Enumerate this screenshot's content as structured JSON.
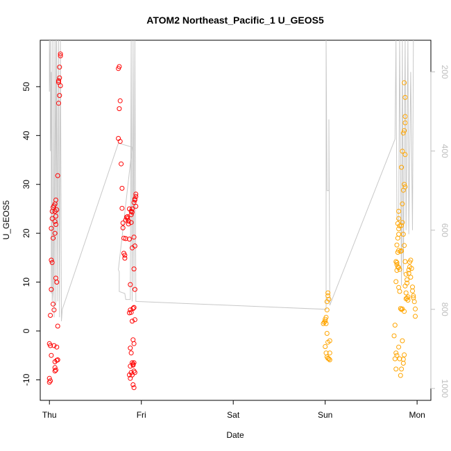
{
  "chart_data": {
    "type": "scatter",
    "title": "ATOM2 Northeast_Pacific_1 U_GEOS5",
    "xlabel": "Date",
    "ylabel": "U_GEOS5",
    "x_ticks": [
      "Thu",
      "Fri",
      "Sat",
      "Sun",
      "Mon"
    ],
    "x_domain_days": [
      -0.1,
      4.15
    ],
    "ylim": [
      -14.2,
      59.5
    ],
    "y_ticks": [
      -10,
      0,
      10,
      20,
      30,
      40,
      50
    ],
    "y2_ticks": [
      200,
      400,
      600,
      800,
      1000
    ],
    "y2lim": [
      1030,
      120
    ],
    "y2_label": "",
    "grid": false,
    "legend": "none",
    "colors": {
      "series1": "#ff0000",
      "series2": "#ffa500",
      "pressure": "#c8c8c8",
      "axis": "#000000",
      "right_axis": "#bebebe"
    },
    "series": [
      {
        "color": "#ff0000",
        "points": [
          [
            0.0,
            -2.6
          ],
          [
            0.01,
            -3.0
          ],
          [
            0.02,
            -5.0
          ],
          [
            0.0,
            -9.7
          ],
          [
            0.01,
            -10.2
          ],
          [
            0.0,
            -10.5
          ],
          [
            0.01,
            3.2
          ],
          [
            0.02,
            8.5
          ],
          [
            0.02,
            14.5
          ],
          [
            0.03,
            14.0
          ],
          [
            0.02,
            21.0
          ],
          [
            0.03,
            23.0
          ],
          [
            0.03,
            24.5
          ],
          [
            0.04,
            25.3
          ],
          [
            0.05,
            25.6
          ],
          [
            0.04,
            19.0
          ],
          [
            0.04,
            5.5
          ],
          [
            0.05,
            4.3
          ],
          [
            0.05,
            -3.0
          ],
          [
            0.06,
            -6.3
          ],
          [
            0.06,
            -7.5
          ],
          [
            0.07,
            -8.0
          ],
          [
            0.06,
            -8.2
          ],
          [
            0.08,
            -3.3
          ],
          [
            0.08,
            -6.0
          ],
          [
            0.09,
            -5.9
          ],
          [
            0.07,
            10.8
          ],
          [
            0.08,
            10.0
          ],
          [
            0.06,
            20.0
          ],
          [
            0.07,
            21.8
          ],
          [
            0.06,
            22.4
          ],
          [
            0.07,
            23.5
          ],
          [
            0.06,
            24.5
          ],
          [
            0.06,
            26.0
          ],
          [
            0.07,
            26.8
          ],
          [
            0.08,
            24.8
          ],
          [
            0.09,
            31.8
          ],
          [
            0.09,
            1.0
          ],
          [
            0.1,
            46.6
          ],
          [
            0.11,
            48.2
          ],
          [
            0.12,
            50.2
          ],
          [
            0.1,
            50.9
          ],
          [
            0.1,
            51.2
          ],
          [
            0.11,
            51.8
          ],
          [
            0.11,
            54.0
          ],
          [
            0.12,
            56.3
          ],
          [
            0.12,
            56.7
          ],
          [
            0.75,
            53.7
          ],
          [
            0.76,
            54.1
          ],
          [
            0.76,
            45.5
          ],
          [
            0.77,
            47.1
          ],
          [
            0.75,
            39.4
          ],
          [
            0.77,
            38.8
          ],
          [
            0.78,
            34.2
          ],
          [
            0.79,
            29.2
          ],
          [
            0.79,
            25.1
          ],
          [
            0.8,
            22.1
          ],
          [
            0.8,
            21.1
          ],
          [
            0.81,
            19.0
          ],
          [
            0.81,
            15.9
          ],
          [
            0.82,
            14.9
          ],
          [
            0.82,
            15.5
          ],
          [
            0.83,
            18.9
          ],
          [
            0.83,
            22.7
          ],
          [
            0.84,
            23.3
          ],
          [
            0.85,
            23.0
          ],
          [
            0.85,
            23.4
          ],
          [
            0.86,
            22.5
          ],
          [
            0.86,
            21.9
          ],
          [
            0.87,
            25.0
          ],
          [
            0.87,
            18.8
          ],
          [
            0.88,
            9.5
          ],
          [
            0.89,
            22.2
          ],
          [
            0.89,
            23.8
          ],
          [
            0.89,
            24.5
          ],
          [
            0.9,
            25.0
          ],
          [
            0.9,
            24.3
          ],
          [
            0.9,
            17.0
          ],
          [
            0.92,
            19.2
          ],
          [
            0.93,
            17.4
          ],
          [
            0.92,
            12.7
          ],
          [
            0.93,
            8.5
          ],
          [
            0.92,
            26.3
          ],
          [
            0.93,
            27.0
          ],
          [
            0.94,
            27.5
          ],
          [
            0.94,
            28.0
          ],
          [
            0.93,
            26.8
          ],
          [
            0.94,
            25.5
          ],
          [
            0.88,
            -3.5
          ],
          [
            0.88,
            -7.2
          ],
          [
            0.87,
            -9.0
          ],
          [
            0.88,
            -9.7
          ],
          [
            0.89,
            -8.5
          ],
          [
            0.9,
            -6.5
          ],
          [
            0.91,
            -7.0
          ],
          [
            0.91,
            -6.8
          ],
          [
            0.92,
            -6.5
          ],
          [
            0.9,
            -9.0
          ],
          [
            0.92,
            -8.2
          ],
          [
            0.93,
            -8.5
          ],
          [
            0.91,
            -11.0
          ],
          [
            0.92,
            -11.6
          ],
          [
            0.89,
            -4.5
          ],
          [
            0.91,
            -1.8
          ],
          [
            0.92,
            -2.6
          ],
          [
            0.87,
            3.7
          ],
          [
            0.88,
            4.3
          ],
          [
            0.89,
            3.8
          ],
          [
            0.91,
            4.6
          ],
          [
            0.92,
            4.8
          ],
          [
            0.93,
            2.3
          ],
          [
            0.92,
            4.8
          ],
          [
            0.9,
            2.0
          ]
        ]
      },
      {
        "color": "#ffa500",
        "points": [
          [
            2.98,
            1.5
          ],
          [
            2.99,
            1.8
          ],
          [
            3.0,
            2.0
          ],
          [
            3.0,
            2.4
          ],
          [
            3.01,
            1.5
          ],
          [
            3.01,
            2.8
          ],
          [
            3.02,
            4.3
          ],
          [
            3.02,
            6.0
          ],
          [
            3.03,
            7.2
          ],
          [
            3.03,
            7.8
          ],
          [
            3.04,
            6.5
          ],
          [
            3.02,
            -0.5
          ],
          [
            3.03,
            -2.3
          ],
          [
            3.05,
            -2.0
          ],
          [
            3.0,
            -3.2
          ],
          [
            3.01,
            -4.5
          ],
          [
            3.02,
            -5.3
          ],
          [
            3.03,
            -5.6
          ],
          [
            3.04,
            -5.7
          ],
          [
            3.05,
            -5.9
          ],
          [
            3.05,
            -4.5
          ],
          [
            3.75,
            -1.0
          ],
          [
            3.76,
            1.2
          ],
          [
            3.77,
            -4.5
          ],
          [
            3.78,
            -5.0
          ],
          [
            3.76,
            -5.7
          ],
          [
            3.77,
            -7.8
          ],
          [
            3.8,
            -3.3
          ],
          [
            3.81,
            -5.7
          ],
          [
            3.82,
            -9.1
          ],
          [
            3.83,
            -7.8
          ],
          [
            3.85,
            -6.6
          ],
          [
            3.85,
            -5.8
          ],
          [
            3.86,
            -4.9
          ],
          [
            3.84,
            -2.0
          ],
          [
            3.84,
            4.5
          ],
          [
            3.86,
            4.0
          ],
          [
            3.82,
            4.6
          ],
          [
            3.83,
            4.4
          ],
          [
            3.8,
            8.9
          ],
          [
            3.81,
            8.1
          ],
          [
            3.77,
            10.1
          ],
          [
            3.78,
            12.4
          ],
          [
            3.78,
            13.6
          ],
          [
            3.77,
            14.2
          ],
          [
            3.79,
            13.1
          ],
          [
            3.8,
            13.0
          ],
          [
            3.81,
            12.6
          ],
          [
            3.78,
            14.0
          ],
          [
            3.79,
            16.1
          ],
          [
            3.8,
            16.5
          ],
          [
            3.82,
            16.3
          ],
          [
            3.83,
            16.4
          ],
          [
            3.78,
            17.6
          ],
          [
            3.79,
            19.0
          ],
          [
            3.8,
            19.8
          ],
          [
            3.8,
            20.9
          ],
          [
            3.81,
            21.5
          ],
          [
            3.79,
            22.0
          ],
          [
            3.8,
            23.0
          ],
          [
            3.8,
            24.5
          ],
          [
            3.83,
            21.6
          ],
          [
            3.84,
            22.2
          ],
          [
            3.85,
            19.8
          ],
          [
            3.86,
            17.5
          ],
          [
            3.87,
            14.2
          ],
          [
            3.88,
            11.6
          ],
          [
            3.89,
            10.5
          ],
          [
            3.89,
            9.8
          ],
          [
            3.87,
            9.2
          ],
          [
            3.88,
            7.8
          ],
          [
            3.89,
            6.7
          ],
          [
            3.9,
            7.0
          ],
          [
            3.9,
            6.3
          ],
          [
            3.88,
            6.6
          ],
          [
            3.91,
            11.8
          ],
          [
            3.91,
            12.5
          ],
          [
            3.92,
            13.1
          ],
          [
            3.92,
            14.1
          ],
          [
            3.93,
            14.5
          ],
          [
            3.94,
            12.8
          ],
          [
            3.93,
            11.0
          ],
          [
            3.95,
            9.0
          ],
          [
            3.95,
            8.2
          ],
          [
            3.96,
            7.2
          ],
          [
            3.96,
            6.8
          ],
          [
            3.97,
            6.0
          ],
          [
            3.98,
            4.5
          ],
          [
            3.98,
            3.0
          ],
          [
            3.84,
            26.0
          ],
          [
            3.85,
            28.8
          ],
          [
            3.86,
            30.0
          ],
          [
            3.87,
            29.5
          ],
          [
            3.83,
            33.5
          ],
          [
            3.84,
            36.8
          ],
          [
            3.87,
            36.1
          ],
          [
            3.85,
            40.5
          ],
          [
            3.86,
            41.0
          ],
          [
            3.87,
            42.6
          ],
          [
            3.87,
            43.9
          ],
          [
            3.87,
            47.8
          ],
          [
            3.86,
            50.8
          ]
        ]
      }
    ],
    "pressure_line": [
      [
        0.0,
        120
      ],
      [
        0.0,
        250
      ],
      [
        0.01,
        120
      ],
      [
        0.01,
        400
      ],
      [
        0.02,
        200
      ],
      [
        0.02,
        760
      ],
      [
        0.03,
        120
      ],
      [
        0.03,
        780
      ],
      [
        0.04,
        750
      ],
      [
        0.05,
        120
      ],
      [
        0.05,
        820
      ],
      [
        0.06,
        400
      ],
      [
        0.07,
        120
      ],
      [
        0.07,
        790
      ],
      [
        0.08,
        120
      ],
      [
        0.09,
        780
      ],
      [
        0.1,
        120
      ],
      [
        0.11,
        820
      ],
      [
        0.11,
        790
      ],
      [
        0.12,
        120
      ],
      [
        0.13,
        800
      ],
      [
        0.13,
        830
      ],
      [
        0.14,
        800
      ],
      [
        0.75,
        380
      ],
      [
        0.9,
        390
      ],
      [
        0.75,
        700
      ],
      [
        0.76,
        705
      ],
      [
        0.76,
        755
      ],
      [
        0.82,
        760
      ],
      [
        0.83,
        775
      ],
      [
        0.88,
        775
      ],
      [
        0.89,
        120
      ],
      [
        0.9,
        780
      ],
      [
        0.91,
        120
      ],
      [
        0.92,
        750
      ],
      [
        0.93,
        120
      ],
      [
        0.94,
        780
      ],
      [
        3.01,
        800
      ],
      [
        3.01,
        120
      ],
      [
        3.02,
        500
      ],
      [
        3.04,
        500
      ],
      [
        3.04,
        320
      ],
      [
        3.05,
        790
      ],
      [
        3.76,
        370
      ],
      [
        3.77,
        120
      ],
      [
        3.78,
        570
      ],
      [
        3.8,
        580
      ],
      [
        3.81,
        120
      ],
      [
        3.83,
        740
      ],
      [
        3.84,
        120
      ],
      [
        3.85,
        710
      ],
      [
        3.87,
        120
      ],
      [
        3.88,
        600
      ],
      [
        3.9,
        120
      ],
      [
        3.91,
        610
      ],
      [
        3.93,
        200
      ],
      [
        3.95,
        600
      ],
      [
        3.96,
        120
      ]
    ]
  }
}
